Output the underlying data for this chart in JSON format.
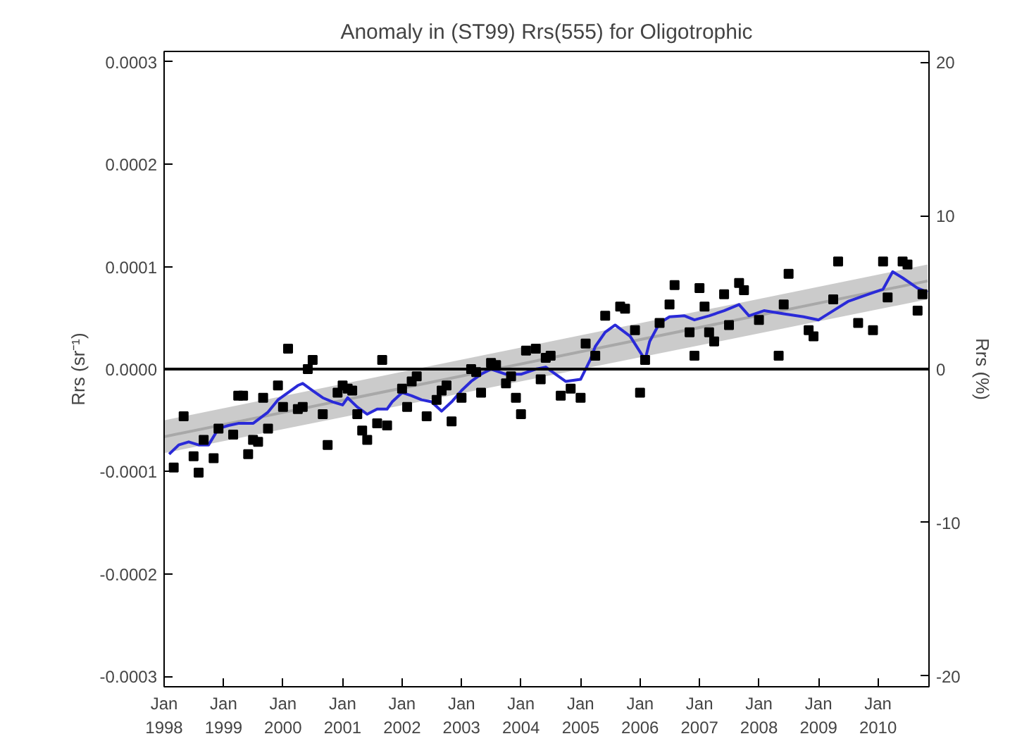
{
  "chart_data": {
    "type": "line",
    "title": "Anomaly in (ST99) Rrs(555) for Oligotrophic",
    "ylabel": "Rrs (sr⁻¹)",
    "y2label": "Rrs (%)",
    "xlim": [
      "1998-01",
      "2010-11-10"
    ],
    "xticks": [
      {
        "value": "1998-01",
        "label": "Jan 1998"
      },
      {
        "value": "1999-01",
        "label": "Jan 1999"
      },
      {
        "value": "2000-01",
        "label": "Jan 2000"
      },
      {
        "value": "2001-01",
        "label": "Jan 2001"
      },
      {
        "value": "2002-01",
        "label": "Jan 2002"
      },
      {
        "value": "2003-01",
        "label": "Jan 2003"
      },
      {
        "value": "2004-01",
        "label": "Jan 2004"
      },
      {
        "value": "2005-01",
        "label": "Jan 2005"
      },
      {
        "value": "2006-01",
        "label": "Jan 2006"
      },
      {
        "value": "2007-01",
        "label": "Jan 2007"
      },
      {
        "value": "2008-01",
        "label": "Jan 2008"
      },
      {
        "value": "2009-01",
        "label": "Jan 2009"
      },
      {
        "value": "2010-01",
        "label": "Jan 2010"
      }
    ],
    "ylim": [
      -0.00031,
      0.00031
    ],
    "yticks": [
      {
        "value": -0.0003,
        "label": "-0.0003"
      },
      {
        "value": -0.0002,
        "label": "-0.0002"
      },
      {
        "value": -0.0001,
        "label": "-0.0001"
      },
      {
        "value": 0,
        "label": "0.0000"
      },
      {
        "value": 0.0001,
        "label": "0.0001"
      },
      {
        "value": 0.0002,
        "label": "0.0002"
      },
      {
        "value": 0.0003,
        "label": "0.0003"
      }
    ],
    "y2lim": [
      -20.7,
      20.7
    ],
    "y2ticks": [
      -20,
      -10,
      0,
      10,
      20
    ],
    "grid": false,
    "ref_lines": [
      {
        "axis": "y",
        "value": 0,
        "color": "#000000"
      }
    ],
    "series": [
      {
        "type": "line",
        "color": "#a8a8a8",
        "x": [
          "1998-01",
          "2010-11"
        ],
        "values": [
          -6.6e-05,
          8.6e-05
        ],
        "lower": [
          -8.2e-05,
          6.8e-05
        ],
        "upper": [
          -5e-05,
          0.000102
        ]
      },
      {
        "color": "#2a2ad8",
        "x": [
          "1998-02",
          "1998-04",
          "1998-06",
          "1998-08",
          "1998-10",
          "1998-12",
          "1999-02",
          "1999-04",
          "1999-07",
          "1999-10",
          "1999-12",
          "2000-02",
          "2000-04",
          "2000-05",
          "2000-07",
          "2000-09",
          "2000-11",
          "2001-01",
          "2001-02",
          "2001-04",
          "2001-06",
          "2001-08",
          "2001-10",
          "2001-11",
          "2002-01",
          "2002-03",
          "2002-05",
          "2002-07",
          "2002-09",
          "2002-11",
          "2003-01",
          "2003-03",
          "2003-05",
          "2003-07",
          "2003-10",
          "2004-01",
          "2004-04",
          "2004-06",
          "2004-08",
          "2004-10",
          "2005-01",
          "2005-03",
          "2005-04",
          "2005-06",
          "2005-08",
          "2005-11",
          "2006-02",
          "2006-03",
          "2006-05",
          "2006-07",
          "2006-10",
          "2006-12",
          "2007-03",
          "2007-06",
          "2007-09",
          "2007-11",
          "2008-02",
          "2008-06",
          "2008-10",
          "2009-01",
          "2009-04",
          "2009-07",
          "2009-11",
          "2010-02",
          "2010-04",
          "2010-06",
          "2010-09",
          "2010-11"
        ],
        "values": [
          -8.3e-05,
          -7.4e-05,
          -7.1e-05,
          -7.4e-05,
          -7.4e-05,
          -5.8e-05,
          -5.5e-05,
          -5.3e-05,
          -5.3e-05,
          -4.2e-05,
          -3e-05,
          -2.3e-05,
          -1.6e-05,
          -1.4e-05,
          -2.1e-05,
          -2.8e-05,
          -3.2e-05,
          -3.5e-05,
          -2.8e-05,
          -3.7e-05,
          -4.4e-05,
          -3.9e-05,
          -3.9e-05,
          -3.2e-05,
          -2.3e-05,
          -2.6e-05,
          -3e-05,
          -3.2e-05,
          -4.1e-05,
          -3.2e-05,
          -2.1e-05,
          -1.2e-05,
          -5e-06,
          0,
          -5e-06,
          -5e-06,
          0,
          2e-06,
          -5e-06,
          -1.2e-05,
          -1e-05,
          9e-06,
          2.2e-05,
          3.6e-05,
          4.3e-05,
          3.2e-05,
          9e-06,
          2.7e-05,
          4.5e-05,
          5.1e-05,
          5.2e-05,
          4.8e-05,
          5.2e-05,
          5.7e-05,
          6.3e-05,
          5.2e-05,
          5.7e-05,
          5.4e-05,
          5.1e-05,
          4.8e-05,
          5.7e-05,
          6.6e-05,
          7.3e-05,
          7.8e-05,
          9.5e-05,
          8.9e-05,
          7.9e-05,
          7.5e-05
        ]
      },
      {
        "type": "scatter",
        "color": "#000000",
        "marker": "square",
        "x": [
          "1998-03",
          "1998-05",
          "1998-07",
          "1998-08",
          "1998-09",
          "1998-11",
          "1998-12",
          "1999-03",
          "1999-04",
          "1999-05",
          "1999-06",
          "1999-07",
          "1999-08",
          "1999-09",
          "1999-10",
          "1999-12",
          "2000-01",
          "2000-02",
          "2000-04",
          "2000-05",
          "2000-06",
          "2000-07",
          "2000-09",
          "2000-10",
          "2000-12",
          "2001-01",
          "2001-02",
          "2001-03",
          "2001-04",
          "2001-05",
          "2001-06",
          "2001-08",
          "2001-09",
          "2001-10",
          "2002-01",
          "2002-02",
          "2002-03",
          "2002-04",
          "2002-06",
          "2002-08",
          "2002-09",
          "2002-10",
          "2002-11",
          "2003-01",
          "2003-03",
          "2003-04",
          "2003-05",
          "2003-07",
          "2003-08",
          "2003-10",
          "2003-11",
          "2003-12",
          "2004-01",
          "2004-02",
          "2004-04",
          "2004-05",
          "2004-06",
          "2004-07",
          "2004-09",
          "2004-11",
          "2005-01",
          "2005-02",
          "2005-04",
          "2005-06",
          "2005-09",
          "2005-10",
          "2005-12",
          "2006-01",
          "2006-02",
          "2006-05",
          "2006-07",
          "2006-08",
          "2006-11",
          "2006-12",
          "2007-01",
          "2007-02",
          "2007-03",
          "2007-04",
          "2007-06",
          "2007-07",
          "2007-09",
          "2007-10",
          "2008-01",
          "2008-05",
          "2008-06",
          "2008-07",
          "2008-11",
          "2008-12",
          "2009-04",
          "2009-05",
          "2009-09",
          "2009-12",
          "2010-02",
          "2010-03",
          "2010-06",
          "2010-07",
          "2010-09",
          "2010-10"
        ],
        "values": [
          -9.6e-05,
          -4.6e-05,
          -8.5e-05,
          -0.000101,
          -6.9e-05,
          -8.7e-05,
          -5.8e-05,
          -6.4e-05,
          -2.6e-05,
          -2.6e-05,
          -8.3e-05,
          -6.9e-05,
          -7.1e-05,
          -2.8e-05,
          -5.8e-05,
          -1.6e-05,
          -3.7e-05,
          2e-05,
          -3.9e-05,
          -3.7e-05,
          0,
          9e-06,
          -4.4e-05,
          -7.4e-05,
          -2.3e-05,
          -1.6e-05,
          -1.9e-05,
          -2.1e-05,
          -4.4e-05,
          -6e-05,
          -6.9e-05,
          -5.3e-05,
          9e-06,
          -5.5e-05,
          -1.9e-05,
          -3.7e-05,
          -1.2e-05,
          -7e-06,
          -4.6e-05,
          -3e-05,
          -2.1e-05,
          -1.6e-05,
          -5.1e-05,
          -2.8e-05,
          0,
          -3e-06,
          -2.3e-05,
          6e-06,
          4e-06,
          -1.4e-05,
          -7e-06,
          -2.8e-05,
          -4.4e-05,
          1.8e-05,
          2e-05,
          -1e-05,
          1.1e-05,
          1.3e-05,
          -2.6e-05,
          -1.9e-05,
          -2.8e-05,
          2.5e-05,
          1.3e-05,
          5.2e-05,
          6.1e-05,
          5.9e-05,
          3.8e-05,
          -2.3e-05,
          9e-06,
          4.5e-05,
          6.3e-05,
          8.2e-05,
          3.6e-05,
          1.3e-05,
          7.9e-05,
          6.1e-05,
          3.6e-05,
          2.7e-05,
          7.3e-05,
          4.3e-05,
          8.4e-05,
          7.7e-05,
          4.8e-05,
          1.3e-05,
          6.3e-05,
          9.3e-05,
          3.8e-05,
          3.2e-05,
          6.8e-05,
          0.000105,
          4.5e-05,
          3.8e-05,
          0.000105,
          7e-05,
          0.000105,
          0.000102,
          5.7e-05,
          7.3e-05
        ]
      }
    ]
  }
}
